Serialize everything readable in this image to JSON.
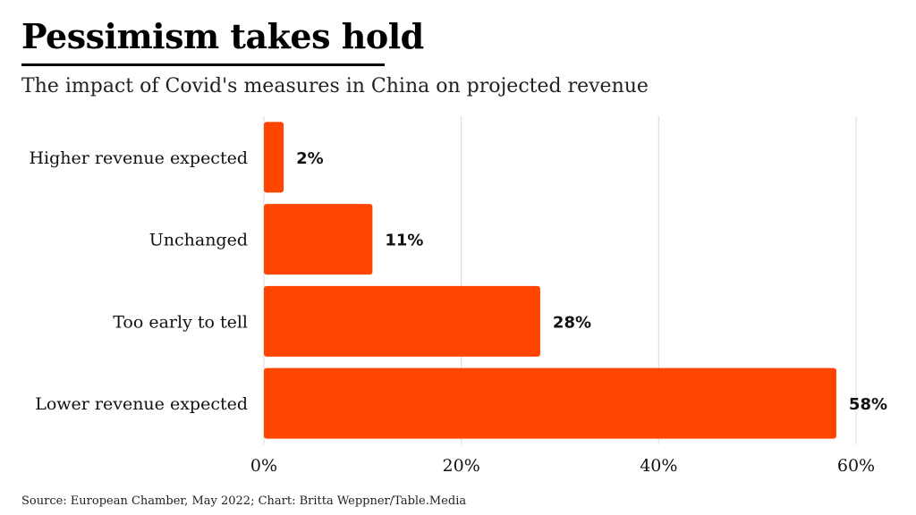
{
  "title": "Pessimism takes hold",
  "subtitle": "The impact of Covid's measures in China on projected revenue",
  "source": "Source: European Chamber, May 2022; Chart: Britta Weppner/Table.Media",
  "colors": {
    "bar": "#ff4500",
    "grid": "#d9d9d9",
    "text": "#111111"
  },
  "chart_data": {
    "type": "bar",
    "orientation": "horizontal",
    "title": "Pessimism takes hold",
    "subtitle": "The impact of Covid's measures in China on projected revenue",
    "categories": [
      "Higher revenue expected",
      "Unchanged",
      "Too early to tell",
      "Lower revenue expected"
    ],
    "values": [
      2,
      11,
      28,
      58
    ],
    "value_labels": [
      "2%",
      "11%",
      "28%",
      "58%"
    ],
    "xlabel": "",
    "ylabel": "",
    "xlim": [
      0,
      60
    ],
    "xticks": [
      0,
      20,
      40,
      60
    ],
    "xtick_labels": [
      "0%",
      "20%",
      "40%",
      "60%"
    ],
    "grid": true
  }
}
